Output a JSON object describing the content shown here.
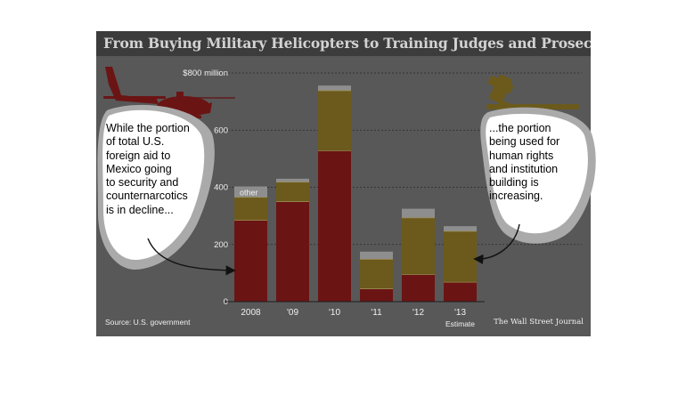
{
  "title": "From Buying Military Helicopters to Training Judges and Prosecutors",
  "source": "Source: U.S. government",
  "publisher": "The Wall Street Journal",
  "annotations": {
    "left_lines": [
      "While the portion",
      "of total U.S.",
      "foreign aid to",
      "Mexico going",
      "to security and",
      "counternarcotics",
      "is in decline..."
    ],
    "right_lines": [
      "...the portion",
      "being used for",
      "human rights",
      "and institution",
      "building is",
      "increasing."
    ]
  },
  "colors": {
    "security": "#6b1414",
    "human_rights": "#6b5a1c",
    "other": "#8e8e8e",
    "background": "#585858",
    "bubble": "#ffffff",
    "bubble_shadow": "#aaaaaa"
  },
  "icons": [
    "helicopter-icon",
    "gavel-icon"
  ],
  "chart_data": {
    "type": "bar",
    "stacked": true,
    "categories": [
      "2008",
      "'09",
      "'10",
      "'11",
      "'12",
      "'13"
    ],
    "category_sublabels": [
      "",
      "",
      "",
      "",
      "",
      "Estimate"
    ],
    "series": [
      {
        "values": [
          285,
          350,
          528,
          45,
          95,
          68
        ]
      },
      {
        "values": [
          80,
          68,
          210,
          103,
          198,
          178
        ]
      },
      {
        "name": "other",
        "values": [
          38,
          12,
          18,
          27,
          32,
          18
        ]
      }
    ],
    "y_ticks": [
      0,
      200,
      400,
      600,
      800
    ],
    "y_tick_labels": [
      "0",
      "200",
      "400",
      "600",
      "$800 million"
    ],
    "ylim": [
      0,
      800
    ],
    "grid": true
  }
}
